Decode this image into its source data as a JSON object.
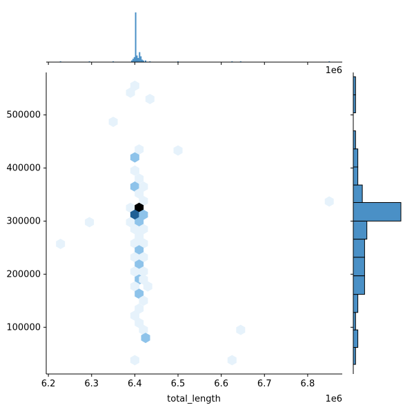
{
  "chart_data": {
    "type": "hexbin-jointplot",
    "xlabel": "total_length",
    "ylabel": "",
    "x_offset_label": "1e6",
    "y_offset_label": "1e6",
    "xlim": [
      6.195,
      6.88
    ],
    "ylim": [
      12000,
      580000
    ],
    "x_ticks": [
      6.2,
      6.3,
      6.4,
      6.5,
      6.6,
      6.7,
      6.8
    ],
    "x_tick_labels": [
      "6.2",
      "6.3",
      "6.4",
      "6.5",
      "6.6",
      "6.7",
      "6.8"
    ],
    "y_ticks": [
      100000,
      200000,
      300000,
      400000,
      500000
    ],
    "y_tick_labels": [
      "100000",
      "200000",
      "300000",
      "400000",
      "500000"
    ],
    "colors": {
      "hex_light": "#e6f2fb",
      "hex_mid": "#8ec3ea",
      "hex_dark": "#1f5f95",
      "hex_max": "#000000",
      "hist": "#4a90c6"
    },
    "hexbins": [
      {
        "x": 6.4,
        "y": 555000,
        "count": 1
      },
      {
        "x": 6.39,
        "y": 542000,
        "count": 1
      },
      {
        "x": 6.435,
        "y": 530000,
        "count": 1
      },
      {
        "x": 6.35,
        "y": 487000,
        "count": 1
      },
      {
        "x": 6.41,
        "y": 435000,
        "count": 1
      },
      {
        "x": 6.5,
        "y": 433000,
        "count": 1
      },
      {
        "x": 6.4,
        "y": 420000,
        "count": 3
      },
      {
        "x": 6.4,
        "y": 395000,
        "count": 1
      },
      {
        "x": 6.41,
        "y": 380000,
        "count": 1
      },
      {
        "x": 6.4,
        "y": 365000,
        "count": 3
      },
      {
        "x": 6.42,
        "y": 365000,
        "count": 1
      },
      {
        "x": 6.41,
        "y": 352000,
        "count": 1
      },
      {
        "x": 6.42,
        "y": 338000,
        "count": 1
      },
      {
        "x": 6.39,
        "y": 325000,
        "count": 1
      },
      {
        "x": 6.41,
        "y": 325000,
        "count": 10
      },
      {
        "x": 6.4,
        "y": 312000,
        "count": 7
      },
      {
        "x": 6.42,
        "y": 312000,
        "count": 2
      },
      {
        "x": 6.39,
        "y": 298000,
        "count": 1
      },
      {
        "x": 6.41,
        "y": 298000,
        "count": 3
      },
      {
        "x": 6.4,
        "y": 285000,
        "count": 1
      },
      {
        "x": 6.42,
        "y": 285000,
        "count": 1
      },
      {
        "x": 6.41,
        "y": 272000,
        "count": 1
      },
      {
        "x": 6.4,
        "y": 258000,
        "count": 1
      },
      {
        "x": 6.42,
        "y": 258000,
        "count": 1
      },
      {
        "x": 6.41,
        "y": 245000,
        "count": 3
      },
      {
        "x": 6.4,
        "y": 232000,
        "count": 1
      },
      {
        "x": 6.42,
        "y": 232000,
        "count": 1
      },
      {
        "x": 6.41,
        "y": 218000,
        "count": 3
      },
      {
        "x": 6.4,
        "y": 205000,
        "count": 1
      },
      {
        "x": 6.42,
        "y": 205000,
        "count": 1
      },
      {
        "x": 6.41,
        "y": 190000,
        "count": 3
      },
      {
        "x": 6.42,
        "y": 190000,
        "count": 1
      },
      {
        "x": 6.4,
        "y": 177000,
        "count": 1
      },
      {
        "x": 6.43,
        "y": 177000,
        "count": 1
      },
      {
        "x": 6.41,
        "y": 163000,
        "count": 2
      },
      {
        "x": 6.42,
        "y": 150000,
        "count": 1
      },
      {
        "x": 6.41,
        "y": 135000,
        "count": 1
      },
      {
        "x": 6.4,
        "y": 122000,
        "count": 1
      },
      {
        "x": 6.41,
        "y": 108000,
        "count": 1
      },
      {
        "x": 6.42,
        "y": 95000,
        "count": 1
      },
      {
        "x": 6.425,
        "y": 80000,
        "count": 2
      },
      {
        "x": 6.4,
        "y": 38000,
        "count": 1
      },
      {
        "x": 6.625,
        "y": 38000,
        "count": 1
      },
      {
        "x": 6.645,
        "y": 95000,
        "count": 1
      },
      {
        "x": 6.85,
        "y": 337000,
        "count": 1
      },
      {
        "x": 6.295,
        "y": 298000,
        "count": 1
      },
      {
        "x": 6.228,
        "y": 257000,
        "count": 1
      }
    ],
    "marginal_x_bars": [
      {
        "x": 6.228,
        "count": 1
      },
      {
        "x": 6.295,
        "count": 1
      },
      {
        "x": 6.35,
        "count": 1
      },
      {
        "x": 6.393,
        "count": 2
      },
      {
        "x": 6.396,
        "count": 4
      },
      {
        "x": 6.399,
        "count": 6
      },
      {
        "x": 6.402,
        "count": 60
      },
      {
        "x": 6.405,
        "count": 8
      },
      {
        "x": 6.408,
        "count": 5
      },
      {
        "x": 6.411,
        "count": 12
      },
      {
        "x": 6.414,
        "count": 7
      },
      {
        "x": 6.417,
        "count": 3
      },
      {
        "x": 6.42,
        "count": 2
      },
      {
        "x": 6.425,
        "count": 2
      },
      {
        "x": 6.435,
        "count": 1
      },
      {
        "x": 6.5,
        "count": 1
      },
      {
        "x": 6.625,
        "count": 1
      },
      {
        "x": 6.645,
        "count": 1
      },
      {
        "x": 6.85,
        "count": 1
      }
    ],
    "marginal_y_bins": [
      {
        "y0": 30000,
        "y1": 62000,
        "count": 1
      },
      {
        "y0": 62000,
        "y1": 95000,
        "count": 2
      },
      {
        "y0": 95000,
        "y1": 128000,
        "count": 1
      },
      {
        "y0": 128000,
        "y1": 162000,
        "count": 2
      },
      {
        "y0": 162000,
        "y1": 197000,
        "count": 5
      },
      {
        "y0": 197000,
        "y1": 232000,
        "count": 5
      },
      {
        "y0": 232000,
        "y1": 266000,
        "count": 5
      },
      {
        "y0": 266000,
        "y1": 300000,
        "count": 6
      },
      {
        "y0": 300000,
        "y1": 335000,
        "count": 21
      },
      {
        "y0": 335000,
        "y1": 368000,
        "count": 4
      },
      {
        "y0": 368000,
        "y1": 402000,
        "count": 2
      },
      {
        "y0": 402000,
        "y1": 436000,
        "count": 2
      },
      {
        "y0": 436000,
        "y1": 470000,
        "count": 1
      },
      {
        "y0": 470000,
        "y1": 504000,
        "count": 0
      },
      {
        "y0": 504000,
        "y1": 538000,
        "count": 1
      },
      {
        "y0": 538000,
        "y1": 572000,
        "count": 1
      }
    ]
  }
}
